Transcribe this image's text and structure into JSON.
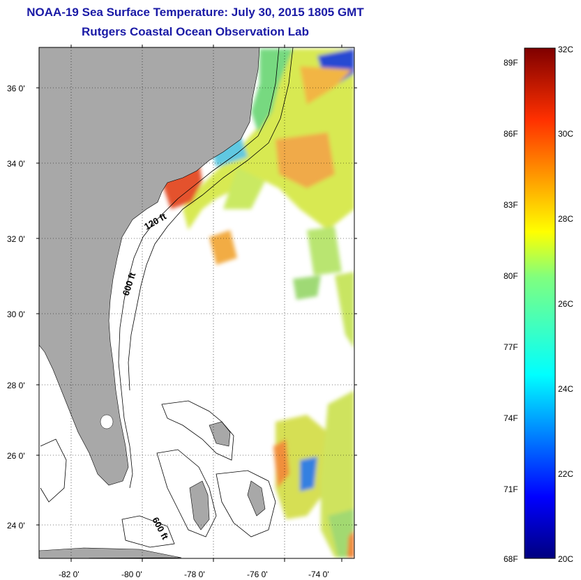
{
  "title": "NOAA-19 Sea Surface Temperature:  July 30, 2015 1805 GMT",
  "subtitle": "Rutgers Coastal Ocean Observation Lab",
  "map": {
    "lon_labels": [
      "-82 0'",
      "-80 0'",
      "-78 0'",
      "-76 0'",
      "-74 0'"
    ],
    "lat_labels": [
      "36 0'",
      "34 0'",
      "32 0'",
      "30 0'",
      "28 0'",
      "26 0'",
      "24 0'"
    ],
    "isobath_labels": [
      "120 ft",
      "600 ft",
      "600 ft"
    ],
    "colors": {
      "land": "#a8a8a8",
      "ocean_no_data": "#ffffff",
      "frame": "#000000"
    }
  },
  "colorbar": {
    "fahrenheit_labels": [
      "89F",
      "86F",
      "83F",
      "80F",
      "77F",
      "74F",
      "71F",
      "68F"
    ],
    "celsius_labels": [
      "32C",
      "30C",
      "28C",
      "26C",
      "24C",
      "22C",
      "20C"
    ],
    "range_celsius": [
      20,
      32
    ],
    "colormap": "jet"
  }
}
